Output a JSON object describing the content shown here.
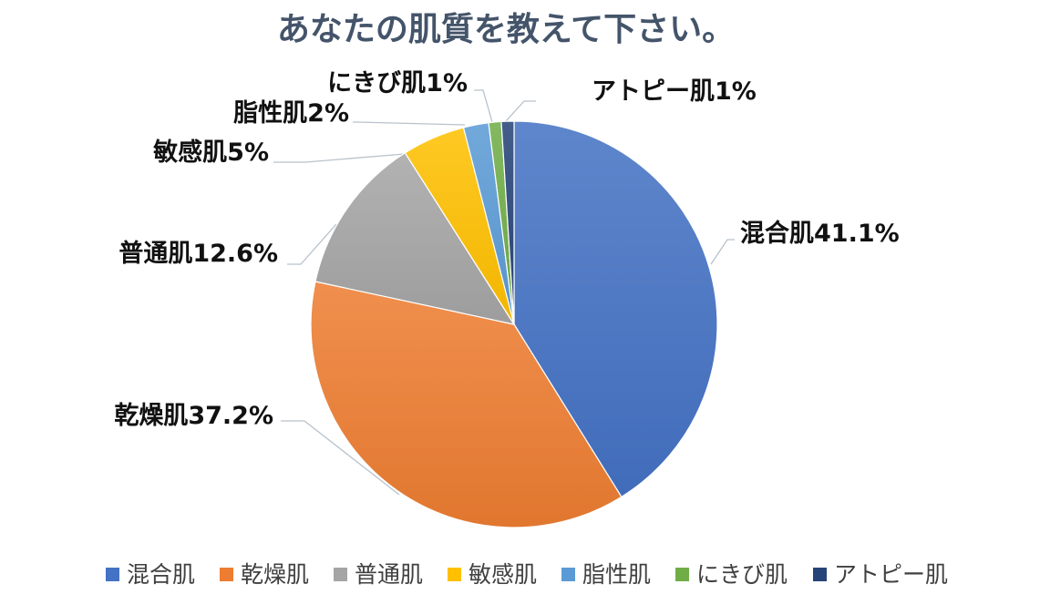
{
  "chart_data": {
    "type": "pie",
    "title": "あなたの肌質を教えて下さい。",
    "slices": [
      {
        "name": "混合肌",
        "value": 41.1,
        "label": "混合肌41.1%",
        "color": "#4472c4"
      },
      {
        "name": "乾燥肌",
        "value": 37.2,
        "label": "乾燥肌37.2%",
        "color": "#ed7d31"
      },
      {
        "name": "普通肌",
        "value": 12.6,
        "label": "普通肌12.6%",
        "color": "#a5a5a5"
      },
      {
        "name": "敏感肌",
        "value": 5,
        "label": "敏感肌5%",
        "color": "#ffc000"
      },
      {
        "name": "脂性肌",
        "value": 2,
        "label": "脂性肌2%",
        "color": "#5b9bd5"
      },
      {
        "name": "にきび肌",
        "value": 1,
        "label": "にきび肌1%",
        "color": "#70ad47"
      },
      {
        "name": "アトピー肌",
        "value": 1,
        "label": "アトピー肌1%",
        "color": "#264478"
      }
    ],
    "legend": "bottom"
  }
}
